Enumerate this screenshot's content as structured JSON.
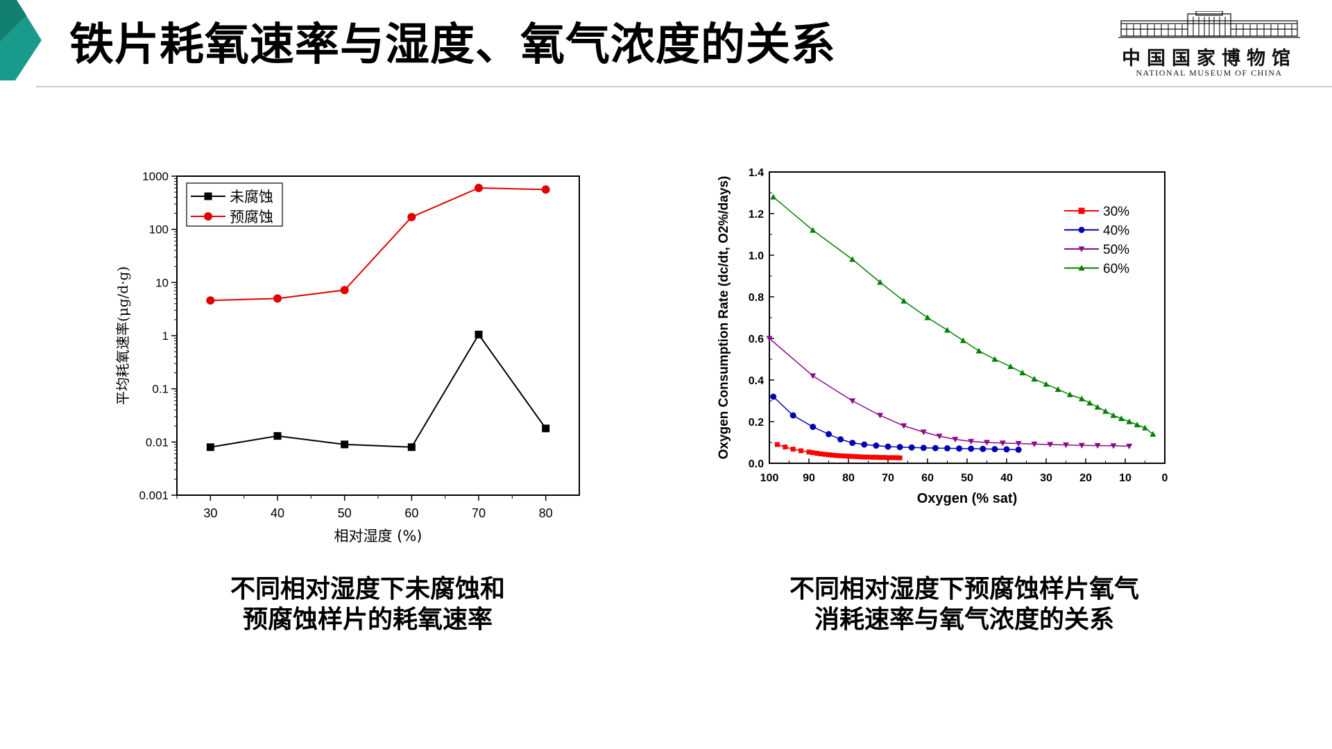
{
  "slide": {
    "title": "铁片耗氧速率与湿度、氧气浓度的关系",
    "logo": {
      "cn": "中国国家博物馆",
      "en": "NATIONAL MUSEUM OF CHINA"
    },
    "accent_color": "#1a9a8a",
    "left_caption": [
      "不同相对湿度下未腐蚀和",
      "预腐蚀样片的耗氧速率"
    ],
    "right_caption": [
      "不同相对湿度下预腐蚀样片氧气",
      "消耗速率与氧气浓度的关系"
    ]
  },
  "chart_data": [
    {
      "type": "line",
      "title": "",
      "xlabel": "相对湿度 (%)",
      "ylabel": "平均耗氧速率(μg/d·g)",
      "yscale": "log",
      "xlim": [
        25,
        85
      ],
      "ylim": [
        0.001,
        1000
      ],
      "xticks": [
        "30",
        "40",
        "50",
        "60",
        "70",
        "80"
      ],
      "yticks": [
        "0.001",
        "0.01",
        "0.1",
        "1",
        "10",
        "100",
        "1000"
      ],
      "legend_position": "top-left",
      "x": [
        30,
        40,
        50,
        60,
        70,
        80
      ],
      "series": [
        {
          "name": "未腐蚀",
          "color": "#000000",
          "marker": "square",
          "values": [
            0.008,
            0.013,
            0.009,
            0.008,
            1.05,
            0.018
          ]
        },
        {
          "name": "预腐蚀",
          "color": "#e00000",
          "marker": "circle",
          "values": [
            4.6,
            5.0,
            7.2,
            170,
            600,
            560
          ]
        }
      ]
    },
    {
      "type": "scatter",
      "title": "",
      "xlabel": "Oxygen (% sat)",
      "ylabel": "Oxygen Consumption Rate (dc/dt, O2%/days)",
      "xlim": [
        100,
        0
      ],
      "ylim": [
        0,
        1.4
      ],
      "xticks": [
        "100",
        "90",
        "80",
        "70",
        "60",
        "50",
        "40",
        "30",
        "20",
        "10",
        "0"
      ],
      "yticks": [
        "0.0",
        "0.2",
        "0.4",
        "0.6",
        "0.8",
        "1.0",
        "1.2",
        "1.4"
      ],
      "legend_position": "top-right",
      "series": [
        {
          "name": "30%",
          "color": "#ff0000",
          "marker": "square",
          "x": [
            98,
            96,
            94,
            92,
            90,
            89,
            88,
            87,
            86,
            85,
            84,
            83,
            82,
            81,
            80,
            79,
            78,
            77,
            76,
            75,
            74,
            73,
            72,
            71,
            70,
            69,
            68,
            67
          ],
          "values": [
            0.09,
            0.078,
            0.068,
            0.06,
            0.054,
            0.051,
            0.048,
            0.045,
            0.043,
            0.041,
            0.039,
            0.037,
            0.036,
            0.035,
            0.034,
            0.033,
            0.032,
            0.031,
            0.03,
            0.03,
            0.029,
            0.029,
            0.028,
            0.028,
            0.027,
            0.027,
            0.027,
            0.026
          ]
        },
        {
          "name": "40%",
          "color": "#0000b4",
          "marker": "circle",
          "x": [
            99,
            94,
            89,
            85,
            82,
            79,
            76,
            73,
            70,
            67,
            64,
            61,
            58,
            55,
            52,
            49,
            46,
            43,
            40,
            37
          ],
          "values": [
            0.32,
            0.23,
            0.175,
            0.14,
            0.115,
            0.098,
            0.09,
            0.085,
            0.08,
            0.078,
            0.076,
            0.074,
            0.073,
            0.072,
            0.071,
            0.07,
            0.069,
            0.068,
            0.067,
            0.065
          ]
        },
        {
          "name": "50%",
          "color": "#8a0a8a",
          "marker": "triangle-down",
          "x": [
            100,
            89,
            79,
            72,
            66,
            61,
            57,
            53,
            49,
            45,
            41,
            37,
            33,
            29,
            25,
            21,
            17,
            13,
            9
          ],
          "values": [
            0.6,
            0.42,
            0.3,
            0.23,
            0.18,
            0.15,
            0.13,
            0.115,
            0.105,
            0.1,
            0.097,
            0.095,
            0.092,
            0.09,
            0.088,
            0.086,
            0.085,
            0.084,
            0.082
          ]
        },
        {
          "name": "60%",
          "color": "#008000",
          "marker": "triangle-up",
          "x": [
            99,
            89,
            79,
            72,
            66,
            60,
            55,
            51,
            47,
            43,
            39,
            36,
            33,
            30,
            27,
            24,
            21,
            19,
            17,
            15,
            13,
            11,
            9,
            7,
            5,
            3
          ],
          "values": [
            1.28,
            1.12,
            0.98,
            0.87,
            0.78,
            0.7,
            0.64,
            0.59,
            0.54,
            0.5,
            0.465,
            0.435,
            0.405,
            0.38,
            0.355,
            0.33,
            0.31,
            0.29,
            0.27,
            0.25,
            0.23,
            0.215,
            0.2,
            0.185,
            0.17,
            0.14
          ]
        }
      ]
    }
  ]
}
